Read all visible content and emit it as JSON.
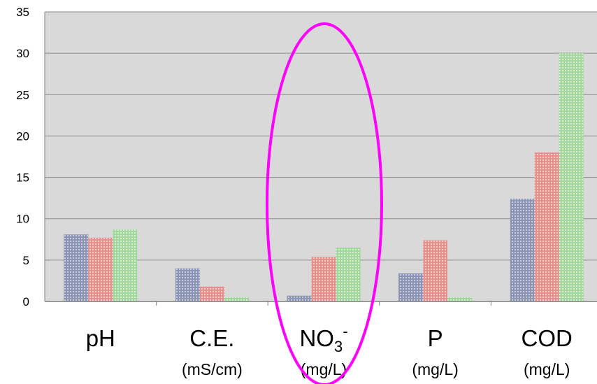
{
  "chart_data": {
    "type": "bar",
    "categories": [
      "pH",
      "C.E.",
      "NO3-",
      "P",
      "COD"
    ],
    "category_labels": [
      {
        "main": "pH",
        "sub": "",
        "unit": ""
      },
      {
        "main": "C.E.",
        "sub": "",
        "unit": "(mS/cm)"
      },
      {
        "main": "NO",
        "sub": "3",
        "sup": "-",
        "unit": "(mg/L)"
      },
      {
        "main": "P",
        "sub": "",
        "unit": "(mg/L)"
      },
      {
        "main": "COD",
        "sub": "",
        "unit": "(mg/L)"
      }
    ],
    "series": [
      {
        "values": [
          8.1,
          4.0,
          0.7,
          3.4,
          12.4
        ],
        "color": "#8a94b4"
      },
      {
        "values": [
          7.7,
          1.8,
          5.4,
          7.4,
          18.0
        ],
        "color": "#e8908e"
      },
      {
        "values": [
          8.7,
          0.5,
          6.5,
          0.5,
          30.0
        ],
        "color": "#9fd89a"
      }
    ],
    "ylim": [
      0,
      35
    ],
    "yticks": [
      "0",
      "5",
      "10",
      "15",
      "20",
      "25",
      "30",
      "35"
    ],
    "grid": true,
    "plot_background": "#d9d9d9",
    "highlight": {
      "category": "NO3-",
      "shape": "ellipse",
      "color": "#ff00ff"
    }
  }
}
